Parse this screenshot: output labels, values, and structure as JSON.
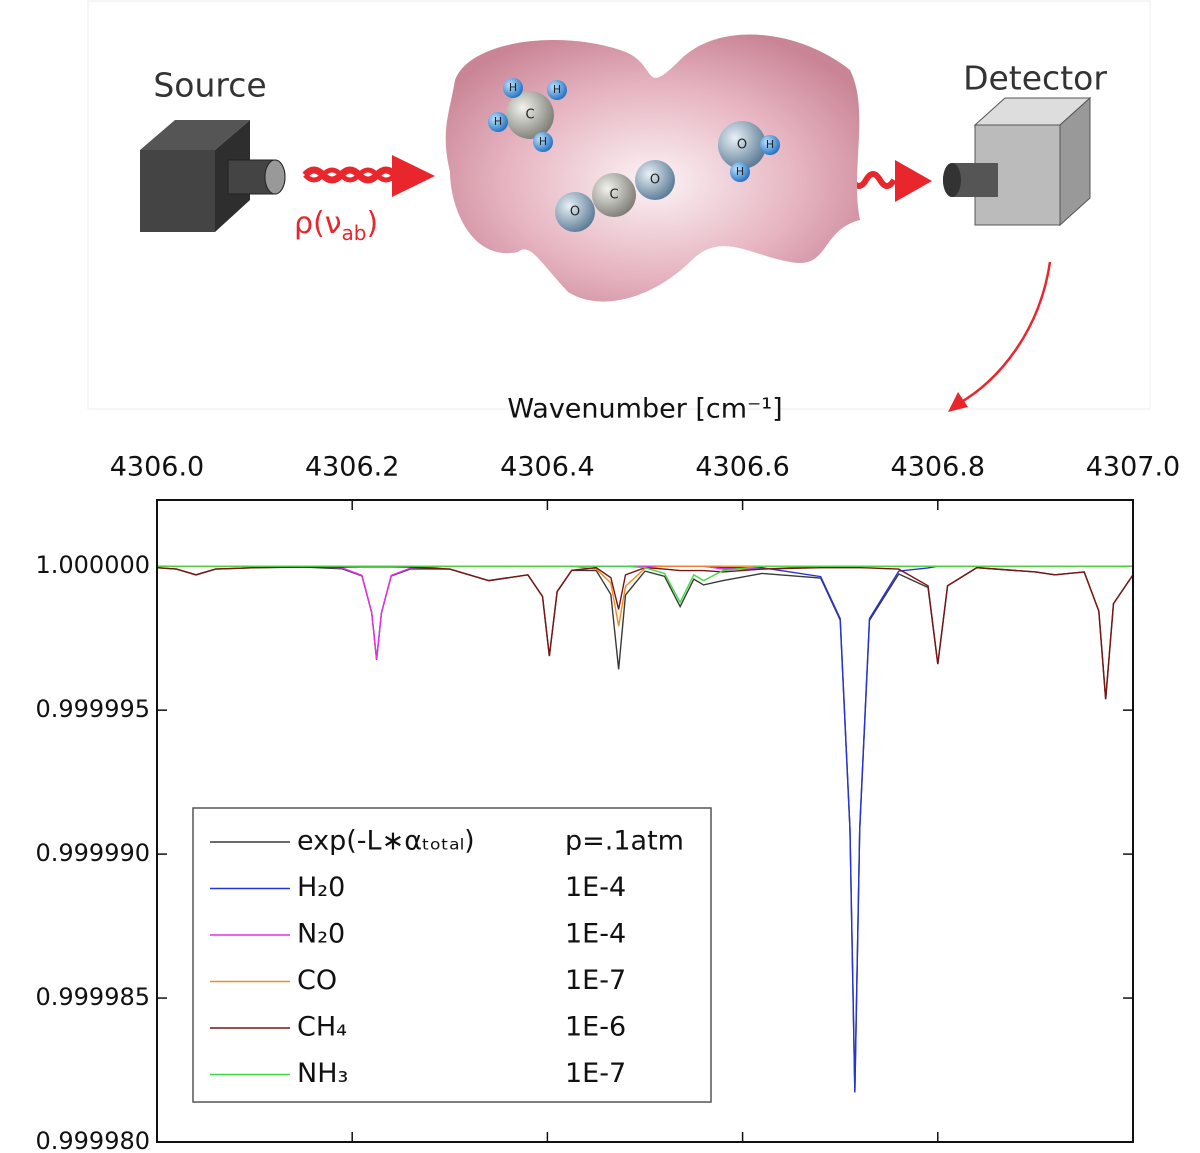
{
  "diagram": {
    "source_label": "Source",
    "detector_label": "Detector",
    "beam_label": {
      "main": "ρ(ν",
      "sub": "ab",
      "close": ")"
    },
    "molecules": [
      {
        "atoms": [
          "C",
          "H",
          "H",
          "H",
          "H"
        ]
      },
      {
        "atoms": [
          "O",
          "C",
          "O"
        ]
      },
      {
        "atoms": [
          "O",
          "H",
          "H"
        ]
      }
    ]
  },
  "chart_data": {
    "type": "line",
    "x_label": "Wavenumber [cm⁻¹]",
    "x_axis_position": "top",
    "x": [
      4306.0,
      4306.02,
      4306.04,
      4306.06,
      4306.1,
      4306.15,
      4306.19,
      4306.21,
      4306.22,
      4306.225,
      4306.23,
      4306.24,
      4306.26,
      4306.3,
      4306.34,
      4306.38,
      4306.395,
      4306.402,
      4306.41,
      4306.425,
      4306.45,
      4306.465,
      4306.473,
      4306.48,
      4306.5,
      4306.52,
      4306.536,
      4306.55,
      4306.56,
      4306.58,
      4306.62,
      4306.68,
      4306.7,
      4306.71,
      4306.715,
      4306.72,
      4306.73,
      4306.76,
      4306.79,
      4306.8,
      4306.81,
      4306.84,
      4306.9,
      4306.92,
      4306.95,
      4306.965,
      4306.972,
      4306.98,
      4307.0
    ],
    "xlim": [
      4306.0,
      4307.0
    ],
    "xticks": [
      {
        "value": 4306.0,
        "label": "4306.0"
      },
      4306.2,
      4306.4,
      4306.6,
      4306.8,
      {
        "value": 4307.0,
        "label": "4307.0"
      }
    ],
    "ylim": [
      0.99998,
      1.0000023
    ],
    "yticks": [
      {
        "value": 0.99998,
        "label": "0.999980"
      },
      {
        "value": 0.999985,
        "label": "0.999985"
      },
      {
        "value": 0.99999,
        "label": "0.999990"
      },
      {
        "value": 0.999995,
        "label": "0.999995"
      },
      {
        "value": 1.0,
        "label": "1.000000"
      }
    ],
    "series": [
      {
        "name": "exp(-L∗αₜₒₜₐₗ)",
        "amount": "p=.1atm",
        "color": "#3a3a3a",
        "values": [
          0.99999995,
          0.9999999,
          0.9999997,
          0.9999999,
          0.99999995,
          0.99999997,
          0.99999991,
          0.99999966,
          0.99999838,
          0.99999675,
          0.99999838,
          0.99999966,
          0.99999991,
          0.9999999,
          0.9999995,
          0.9999997,
          0.99999895,
          0.99999688,
          0.99999912,
          0.99999986,
          0.99999985,
          0.99999902,
          0.99999642,
          0.999999,
          0.99999983,
          0.99999965,
          0.9999986,
          0.99999955,
          0.99999935,
          0.9999995,
          0.99999975,
          0.99999959,
          0.99999813,
          0.99999085,
          0.99998172,
          0.99999085,
          0.99999812,
          0.99999973,
          0.99999926,
          0.9999966,
          0.99999932,
          0.99999995,
          0.9999998,
          0.9999997,
          0.9999998,
          0.99999844,
          0.99999538,
          0.9999987,
          0.9999997
        ]
      },
      {
        "name": "H₂0",
        "amount": "1E-4",
        "color": "#2633d9",
        "values": [
          1,
          1,
          1,
          1,
          1,
          1,
          1,
          1,
          1,
          1,
          1,
          1,
          1,
          1,
          1,
          1,
          1,
          1,
          1,
          1,
          1,
          1,
          1,
          1,
          1,
          1,
          1,
          1,
          1,
          0.99999995,
          0.99999995,
          0.99999964,
          0.99999818,
          0.9999909,
          0.99998177,
          0.9999909,
          0.99999818,
          0.99999983,
          0.99999994,
          1,
          1,
          1,
          1,
          1,
          1,
          1,
          1,
          1,
          1
        ]
      },
      {
        "name": "N₂0",
        "amount": "1E-4",
        "color": "#e82ee8",
        "values": [
          1,
          1,
          1,
          1,
          1,
          1,
          0.99999994,
          0.99999968,
          0.9999984,
          0.99999677,
          0.9999984,
          0.99999968,
          0.99999994,
          1,
          1,
          1,
          1,
          1,
          1,
          1,
          1,
          1,
          1,
          1,
          1,
          1,
          1,
          1,
          1,
          0.9999999,
          0.9999999,
          1,
          1,
          1,
          1,
          1,
          1,
          1,
          1,
          1,
          1,
          1,
          1,
          1,
          1,
          1,
          1,
          1,
          1
        ]
      },
      {
        "name": "CO",
        "amount": "1E-7",
        "color": "#f5891e",
        "values": [
          1,
          1,
          1,
          1,
          1,
          1,
          1,
          1,
          1,
          1,
          1,
          1,
          1,
          1,
          1,
          1,
          1,
          1,
          1,
          1,
          0.9999999,
          0.99999942,
          0.99999792,
          0.9999993,
          0.99999993,
          1,
          1,
          1,
          1,
          1,
          1,
          1,
          1,
          1,
          1,
          1,
          1,
          1,
          1,
          1,
          1,
          1,
          1,
          1,
          1,
          1,
          1,
          1,
          1
        ]
      },
      {
        "name": "CH₄",
        "amount": "1E-6",
        "color": "#7a1414",
        "values": [
          0.99999995,
          0.9999999,
          0.9999997,
          0.9999999,
          0.99999995,
          0.99999997,
          0.99999997,
          0.99999998,
          0.99999998,
          0.99999998,
          0.99999998,
          0.99999998,
          0.99999997,
          0.9999999,
          0.9999995,
          0.9999997,
          0.99999895,
          0.99999688,
          0.99999912,
          0.99999986,
          0.99999995,
          0.9999996,
          0.9999985,
          0.9999997,
          0.99999995,
          0.9999999,
          0.99999985,
          0.99999985,
          0.99999985,
          0.9999998,
          0.9999999,
          0.99999995,
          0.99999995,
          0.99999995,
          0.99999995,
          0.99999995,
          0.99999994,
          0.9999999,
          0.99999932,
          0.9999966,
          0.99999932,
          0.99999995,
          0.9999998,
          0.9999997,
          0.9999998,
          0.99999844,
          0.99999538,
          0.9999987,
          0.9999997
        ]
      },
      {
        "name": "NH₃",
        "amount": "1E-7",
        "color": "#3ddc3d",
        "values": [
          1,
          1,
          1,
          1,
          1,
          1,
          1,
          1,
          1,
          1,
          1,
          1,
          1,
          1,
          1,
          1,
          1,
          1,
          1,
          1,
          1,
          1,
          1,
          1,
          0.99999995,
          0.99999975,
          0.99999875,
          0.9999997,
          0.9999995,
          0.99999985,
          1,
          1,
          1,
          1,
          1,
          1,
          1,
          1,
          1,
          1,
          1,
          1,
          1,
          1,
          1,
          1,
          1,
          1,
          1
        ]
      }
    ]
  }
}
